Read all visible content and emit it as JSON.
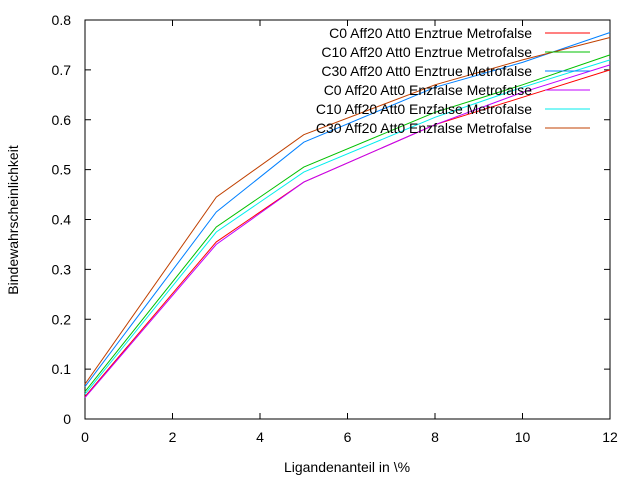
{
  "chart_data": {
    "type": "line",
    "title": "",
    "xlabel": "Ligandenanteil in \\%",
    "ylabel": "Bindewahrscheinlichkeit",
    "xlim": [
      0,
      12
    ],
    "ylim": [
      0,
      0.8
    ],
    "xticks": [
      0,
      2,
      4,
      6,
      8,
      10,
      12
    ],
    "yticks": [
      0,
      0.1,
      0.2,
      0.3,
      0.4,
      0.5,
      0.6,
      0.7,
      0.8
    ],
    "xtick_labels": [
      "0",
      "2",
      "4",
      "6",
      "8",
      "10",
      "12"
    ],
    "ytick_labels": [
      "0",
      "0.1",
      "0.2",
      "0.3",
      "0.4",
      "0.5",
      "0.6",
      "0.7",
      "0.8"
    ],
    "grid": false,
    "legend_position": "top-right",
    "x": [
      0,
      3,
      5,
      8,
      10,
      12
    ],
    "series": [
      {
        "name": "C0 Aff20 Att0 Enztrue Metrofalse",
        "color": "#ff0000",
        "values": [
          0.045,
          0.355,
          0.475,
          0.59,
          0.645,
          0.7
        ]
      },
      {
        "name": "C10 Aff20 Att0 Enztrue Metrofalse",
        "color": "#00c000",
        "values": [
          0.055,
          0.385,
          0.505,
          0.615,
          0.67,
          0.73
        ]
      },
      {
        "name": "C30 Aff20 Att0 Enztrue Metrofalse",
        "color": "#0080ff",
        "values": [
          0.065,
          0.415,
          0.555,
          0.665,
          0.715,
          0.775
        ]
      },
      {
        "name": "C0 Aff20 Att0 Enzfalse Metrofalse",
        "color": "#c000ff",
        "values": [
          0.043,
          0.35,
          0.475,
          0.59,
          0.655,
          0.71
        ]
      },
      {
        "name": "C10 Aff20 Att0 Enzfalse Metrofalse",
        "color": "#00eeee",
        "values": [
          0.05,
          0.375,
          0.495,
          0.605,
          0.665,
          0.72
        ]
      },
      {
        "name": "C30 Aff20 Att0 Enzfalse Metrofalse",
        "color": "#c04000",
        "values": [
          0.07,
          0.445,
          0.57,
          0.67,
          0.72,
          0.765
        ]
      }
    ]
  }
}
